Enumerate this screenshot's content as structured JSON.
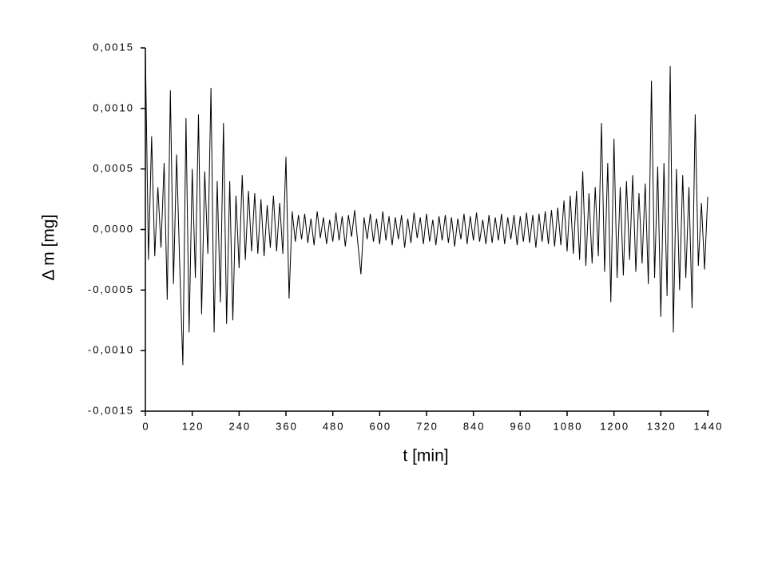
{
  "chart_data": {
    "type": "line",
    "xlabel": "t [min]",
    "ylabel": "Δ m [mg]",
    "xlim": [
      0,
      1440
    ],
    "xticks": [
      0,
      120,
      240,
      360,
      480,
      600,
      720,
      840,
      960,
      1080,
      1200,
      1320,
      1440
    ],
    "ylim": [
      -0.0015,
      0.0015
    ],
    "yticks": [
      {
        "value": -0.0015,
        "label": "-0,0015"
      },
      {
        "value": -0.001,
        "label": "-0,0010"
      },
      {
        "value": -0.0005,
        "label": "-0,0005"
      },
      {
        "value": 0,
        "label": "0,0000"
      },
      {
        "value": 0.0005,
        "label": "0,0005"
      },
      {
        "value": 0.001,
        "label": "0,0010"
      },
      {
        "value": 0.0015,
        "label": "0,0015"
      }
    ],
    "x": [
      0,
      8,
      16,
      24,
      32,
      40,
      48,
      56,
      64,
      72,
      80,
      88,
      96,
      104,
      112,
      120,
      128,
      136,
      144,
      152,
      160,
      168,
      176,
      184,
      192,
      200,
      208,
      216,
      224,
      232,
      240,
      248,
      256,
      264,
      272,
      280,
      288,
      296,
      304,
      312,
      320,
      328,
      336,
      344,
      352,
      360,
      368,
      376,
      384,
      392,
      400,
      408,
      416,
      424,
      432,
      440,
      448,
      456,
      464,
      472,
      480,
      488,
      496,
      504,
      512,
      520,
      528,
      536,
      544,
      552,
      560,
      568,
      576,
      584,
      592,
      600,
      608,
      616,
      624,
      632,
      640,
      648,
      656,
      664,
      672,
      680,
      688,
      696,
      704,
      712,
      720,
      728,
      736,
      744,
      752,
      760,
      768,
      776,
      784,
      792,
      800,
      808,
      816,
      824,
      832,
      840,
      848,
      856,
      864,
      872,
      880,
      888,
      896,
      904,
      912,
      920,
      928,
      936,
      944,
      952,
      960,
      968,
      976,
      984,
      992,
      1000,
      1008,
      1016,
      1024,
      1032,
      1040,
      1048,
      1056,
      1064,
      1072,
      1080,
      1088,
      1096,
      1104,
      1112,
      1120,
      1128,
      1136,
      1144,
      1152,
      1160,
      1168,
      1176,
      1184,
      1192,
      1200,
      1208,
      1216,
      1224,
      1232,
      1240,
      1248,
      1256,
      1264,
      1272,
      1280,
      1288,
      1296,
      1304,
      1312,
      1320,
      1328,
      1336,
      1344,
      1352,
      1360,
      1368,
      1376,
      1384,
      1392,
      1400,
      1408,
      1416,
      1424,
      1432,
      1440
    ],
    "series": [
      {
        "color": "#000000",
        "values": [
          0.00148,
          -0.00025,
          0.00077,
          -0.00022,
          0.00035,
          -0.00015,
          0.00055,
          -0.00058,
          0.00115,
          -0.00045,
          0.00062,
          -0.0003,
          -0.00112,
          0.00092,
          -0.00085,
          0.0005,
          -0.0004,
          0.00095,
          -0.0007,
          0.00048,
          -0.0002,
          0.00117,
          -0.00085,
          0.0004,
          -0.0006,
          0.00088,
          -0.00078,
          0.0004,
          -0.00075,
          0.00028,
          -0.00032,
          0.00045,
          -0.00025,
          0.00032,
          -0.00018,
          0.0003,
          -0.0002,
          0.00025,
          -0.00022,
          0.0002,
          -0.00015,
          0.00028,
          -0.00018,
          0.00022,
          -0.0002,
          0.0006,
          -0.00057,
          0.00015,
          -0.0001,
          0.00012,
          -8e-05,
          0.00013,
          -0.00011,
          9e-05,
          -0.00013,
          0.00015,
          -7e-05,
          0.0001,
          -0.00012,
          8e-05,
          -0.0001,
          0.00014,
          -9e-05,
          0.00011,
          -0.00014,
          0.00012,
          -6e-05,
          0.00016,
          -0.00011,
          -0.00037,
          0.0001,
          -8e-05,
          0.00013,
          -0.0001,
          9e-05,
          -0.00012,
          0.00015,
          -9e-05,
          0.00011,
          -0.00013,
          0.0001,
          -8e-05,
          0.00012,
          -0.00015,
          9e-05,
          -0.00011,
          0.00014,
          -7e-05,
          0.0001,
          -0.00012,
          0.00013,
          -0.0001,
          8e-05,
          -0.00013,
          0.00011,
          -9e-05,
          0.00012,
          -0.00011,
          0.0001,
          -0.00014,
          9e-05,
          -8e-05,
          0.00013,
          -0.00012,
          0.00011,
          -9e-05,
          0.00014,
          -0.0001,
          8e-05,
          -0.00012,
          0.00012,
          -0.00011,
          0.0001,
          -9e-05,
          0.00013,
          -0.00012,
          0.0001,
          -8e-05,
          0.00012,
          -0.00013,
          0.00011,
          -0.0001,
          0.00014,
          -0.00011,
          0.00012,
          -0.00015,
          0.00013,
          -0.0001,
          0.00015,
          -0.00012,
          0.00016,
          -0.00014,
          0.00018,
          -0.00013,
          0.00024,
          -0.00018,
          0.00028,
          -0.0002,
          0.00032,
          -0.00025,
          0.00048,
          -0.0003,
          0.0003,
          -0.00028,
          0.00035,
          -0.00022,
          0.00088,
          -0.00035,
          0.00055,
          -0.0006,
          0.00075,
          -0.0004,
          0.00035,
          -0.00038,
          0.0004,
          -0.00025,
          0.00045,
          -0.00035,
          0.0003,
          -0.00028,
          0.00038,
          -0.00045,
          0.00123,
          -0.0004,
          0.00052,
          -0.00072,
          0.00055,
          -0.00055,
          0.00135,
          -0.00085,
          0.0005,
          -0.0005,
          0.00045,
          -0.0004,
          0.00035,
          -0.00065,
          0.00095,
          -0.0003,
          0.00022,
          -0.00033,
          0.00027
        ]
      }
    ]
  }
}
